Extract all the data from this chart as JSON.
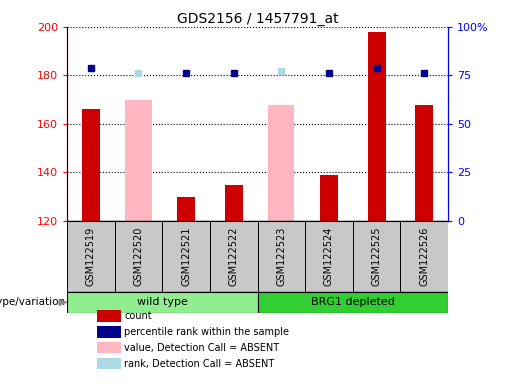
{
  "title": "GDS2156 / 1457791_at",
  "samples": [
    "GSM122519",
    "GSM122520",
    "GSM122521",
    "GSM122522",
    "GSM122523",
    "GSM122524",
    "GSM122525",
    "GSM122526"
  ],
  "red_bars": [
    166,
    null,
    130,
    135,
    null,
    139,
    198,
    168
  ],
  "pink_bars": [
    null,
    170,
    null,
    null,
    168,
    null,
    null,
    null
  ],
  "blue_squares": [
    183,
    null,
    181,
    181,
    null,
    181,
    183,
    181
  ],
  "light_blue_squares": [
    null,
    181,
    null,
    null,
    182,
    null,
    null,
    null
  ],
  "ylim_left": [
    120,
    200
  ],
  "ylim_right": [
    0,
    100
  ],
  "yticks_left": [
    120,
    140,
    160,
    180,
    200
  ],
  "yticks_right": [
    0,
    25,
    50,
    75,
    100
  ],
  "ytick_right_labels": [
    "0",
    "25",
    "50",
    "75",
    "100%"
  ],
  "wt_color": "#90EE90",
  "brg_color": "#32CD32",
  "gray_color": "#C8C8C8",
  "group_label": "genotype/variation",
  "legend_items": [
    {
      "label": "count",
      "color": "#CC0000"
    },
    {
      "label": "percentile rank within the sample",
      "color": "#00008B"
    },
    {
      "label": "value, Detection Call = ABSENT",
      "color": "#FFB6C1"
    },
    {
      "label": "rank, Detection Call = ABSENT",
      "color": "#ADD8E6"
    }
  ]
}
